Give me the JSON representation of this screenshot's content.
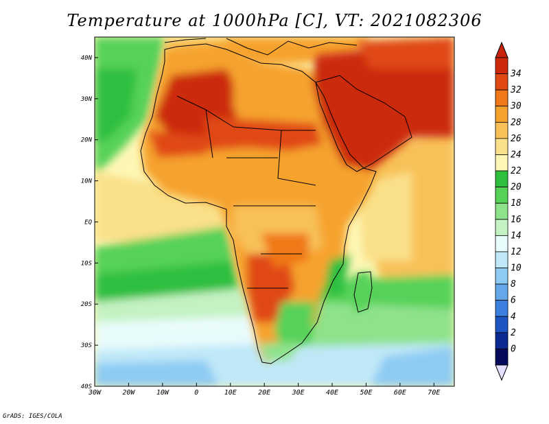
{
  "title": "Temperature at 1000hPa [C], VT: 2021082306",
  "credit": "GrADS: IGES/COLA",
  "map": {
    "extent": {
      "lon": [
        -30,
        76
      ],
      "lat": [
        -40,
        45
      ]
    },
    "lon_ticks": [
      "30W",
      "20W",
      "10W",
      "0",
      "10E",
      "20E",
      "30E",
      "40E",
      "50E",
      "60E",
      "70E"
    ],
    "lat_ticks": [
      "40N",
      "30N",
      "20N",
      "10N",
      "EQ",
      "10S",
      "20S",
      "30S",
      "40S"
    ],
    "colorbar": {
      "labels": [
        "34",
        "32",
        "30",
        "28",
        "26",
        "24",
        "22",
        "20",
        "18",
        "16",
        "14",
        "12",
        "10",
        "8",
        "6",
        "4",
        "2",
        "0"
      ],
      "colors": [
        "#cc2a0a",
        "#e04a12",
        "#f07818",
        "#f6a32e",
        "#f8c158",
        "#fae08a",
        "#fdf7b5",
        "#2fbf3f",
        "#56d258",
        "#8fe28c",
        "#c4f2c2",
        "#e9fcfc",
        "#bfe8f8",
        "#8ecbf3",
        "#64a8ea",
        "#3d7fde",
        "#1d55c2",
        "#0a2a92",
        "#060a5a"
      ],
      "over_color": "#c8230c",
      "under_color": "#e3e1ff"
    }
  }
}
